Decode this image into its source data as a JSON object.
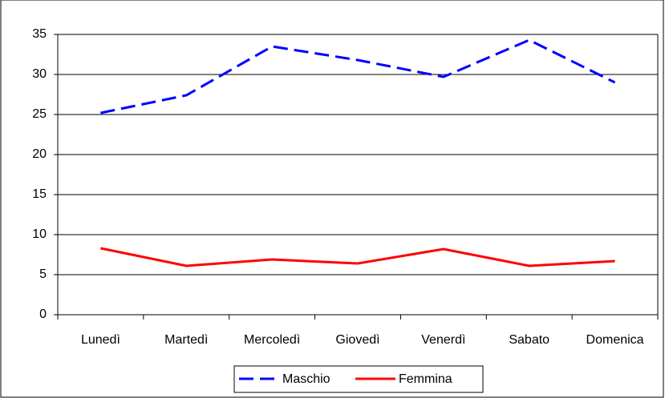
{
  "chart_data": {
    "type": "line",
    "categories": [
      "Lunedì",
      "Martedì",
      "Mercoledì",
      "Giovedì",
      "Venerdì",
      "Sabato",
      "Domenica"
    ],
    "series": [
      {
        "name": "Maschio",
        "color": "#0000ff",
        "dash": true,
        "values": [
          25.2,
          27.4,
          33.5,
          31.8,
          29.7,
          34.3,
          29.0
        ]
      },
      {
        "name": "Femmina",
        "color": "#ff0000",
        "dash": false,
        "values": [
          8.3,
          6.1,
          6.9,
          6.4,
          8.2,
          6.1,
          6.7
        ]
      }
    ],
    "ylim": [
      0,
      35
    ],
    "yticks": [
      0,
      5,
      10,
      15,
      20,
      25,
      30,
      35
    ],
    "grid": true,
    "legend": "bottom"
  }
}
